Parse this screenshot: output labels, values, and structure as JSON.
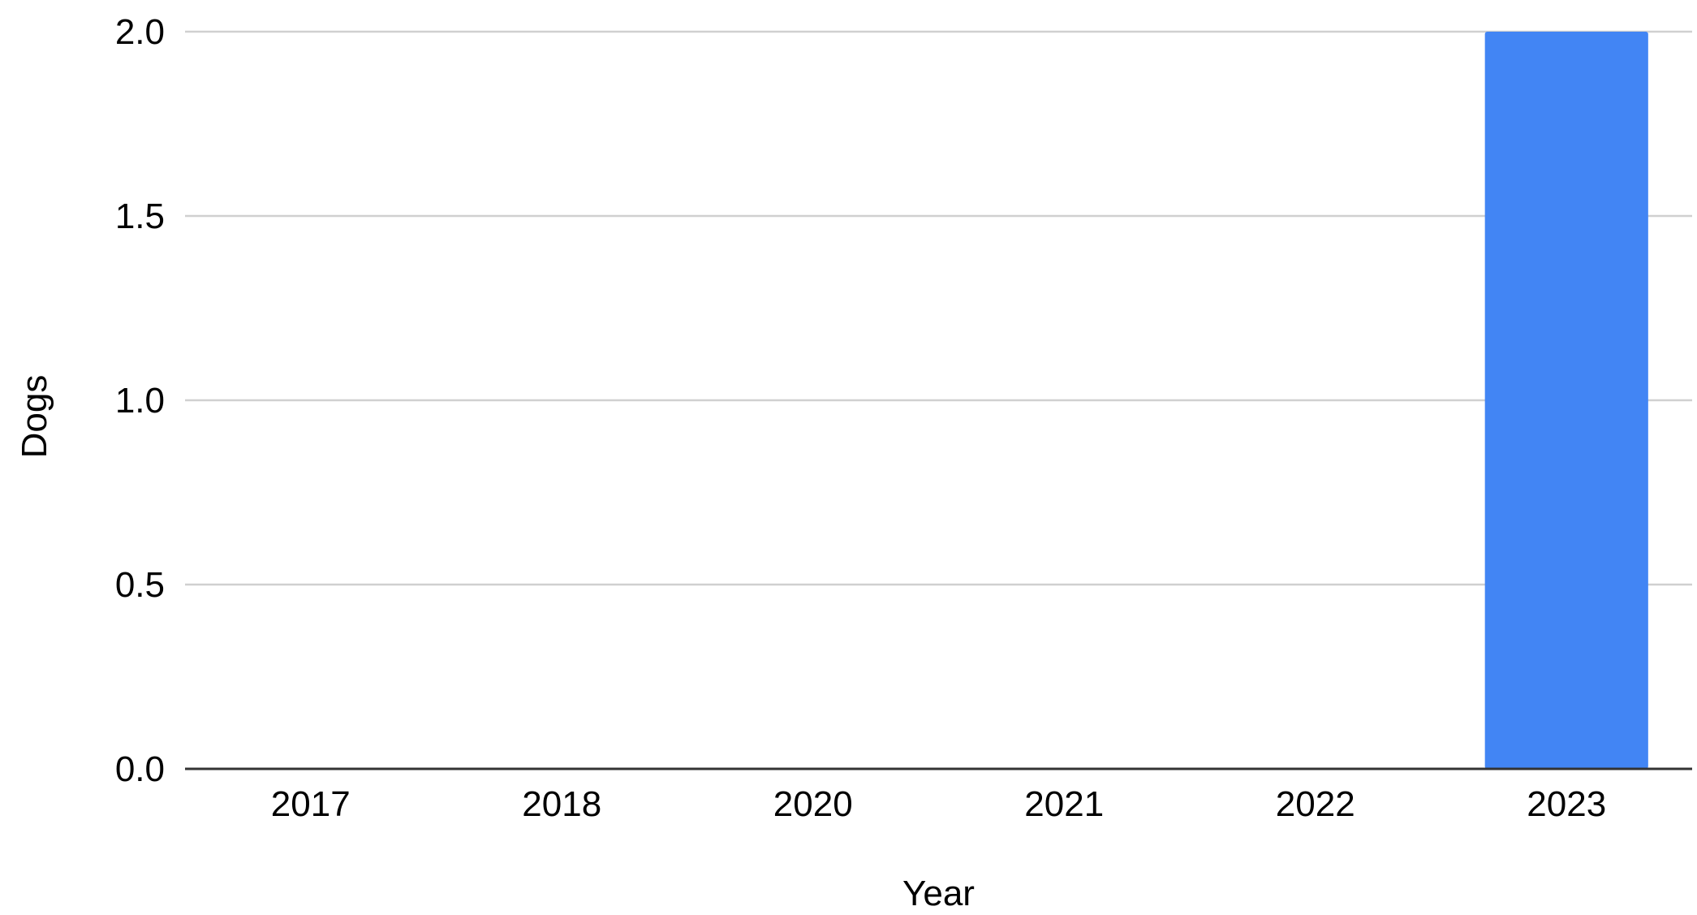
{
  "chart_data": {
    "type": "bar",
    "title": "",
    "xlabel": "Year",
    "ylabel": "Dogs",
    "categories": [
      "2017",
      "2018",
      "2020",
      "2021",
      "2022",
      "2023"
    ],
    "series": [
      {
        "values": [
          0,
          0,
          0,
          0,
          0,
          2
        ],
        "color": "#4285F4"
      }
    ],
    "ylim": [
      0,
      2
    ],
    "yticks": [
      0,
      0.5,
      1,
      1.5,
      2
    ],
    "ytick_labels": [
      "0.0",
      "0.5",
      "1.0",
      "1.5",
      "2.0"
    ],
    "grid": true,
    "legend": "none"
  }
}
